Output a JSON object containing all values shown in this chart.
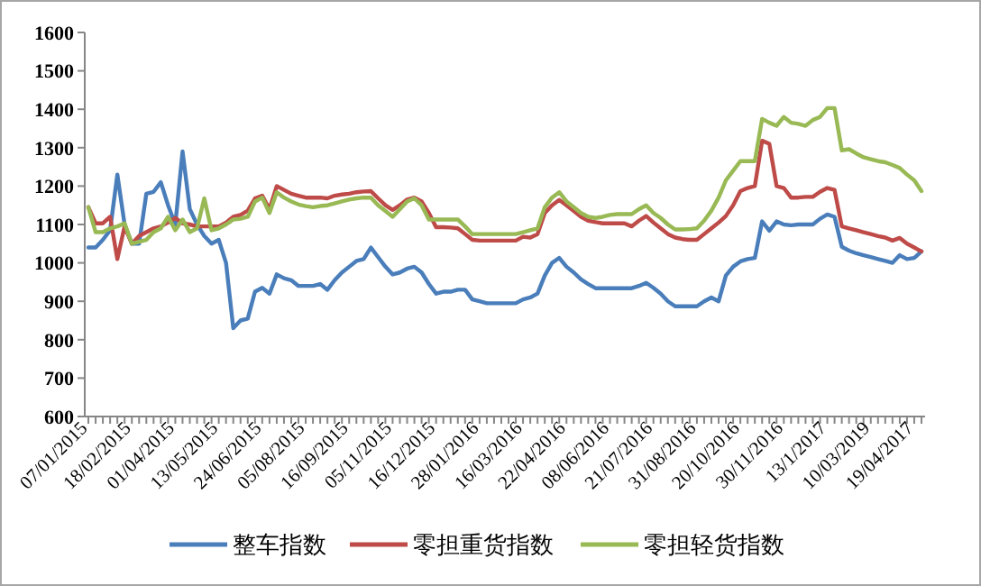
{
  "chart_data": {
    "type": "line",
    "categories": [
      "07/01/2015",
      null,
      null,
      null,
      null,
      null,
      "18/02/2015",
      null,
      null,
      null,
      null,
      null,
      "01/04/2015",
      null,
      null,
      null,
      null,
      null,
      "13/05/2015",
      null,
      null,
      null,
      null,
      null,
      "24/06/2015",
      null,
      null,
      null,
      null,
      null,
      "05/08/2015",
      null,
      null,
      null,
      null,
      null,
      "16/09/2015",
      null,
      null,
      null,
      null,
      null,
      "05/11/2015",
      null,
      null,
      null,
      null,
      null,
      "16/12/2015",
      null,
      null,
      null,
      null,
      null,
      "28/01/2016",
      null,
      null,
      null,
      null,
      null,
      "16/03/2016",
      null,
      null,
      null,
      null,
      null,
      "22/04/2016",
      null,
      null,
      null,
      null,
      null,
      "08/06/2016",
      null,
      null,
      null,
      null,
      null,
      "21/07/2016",
      null,
      null,
      null,
      null,
      null,
      "31/08/2016",
      null,
      null,
      null,
      null,
      null,
      "20/10/2016",
      null,
      null,
      null,
      null,
      null,
      "30/11/2016",
      null,
      null,
      null,
      null,
      null,
      "13/1/2017",
      null,
      null,
      null,
      null,
      null,
      "10/03/2019",
      null,
      null,
      null,
      null,
      null,
      "19/04/2017",
      null
    ],
    "series": [
      {
        "name": "整车指数",
        "color": "#4a7ebb",
        "values": [
          1040,
          1040,
          1060,
          1085,
          1230,
          1100,
          1050,
          1050,
          1180,
          1185,
          1210,
          1150,
          1100,
          1290,
          1140,
          1100,
          1070,
          1050,
          1060,
          1000,
          830,
          850,
          855,
          925,
          935,
          920,
          970,
          960,
          955,
          940,
          940,
          940,
          945,
          930,
          955,
          975,
          990,
          1005,
          1010,
          1040,
          1015,
          990,
          970,
          975,
          985,
          990,
          975,
          945,
          920,
          925,
          925,
          930,
          930,
          905,
          900,
          895,
          895,
          895,
          895,
          895,
          905,
          910,
          920,
          967,
          1000,
          1013,
          990,
          975,
          957,
          945,
          934,
          934,
          934,
          934,
          934,
          934,
          940,
          948,
          935,
          920,
          900,
          887,
          887,
          887,
          887,
          900,
          910,
          900,
          967,
          990,
          1004,
          1010,
          1013,
          1108,
          1084,
          1108,
          1100,
          1098,
          1100,
          1100,
          1100,
          1115,
          1126,
          1120,
          1042,
          1032,
          1025,
          1020,
          1015,
          1010,
          1005,
          1000,
          1020,
          1010,
          1013,
          1030
        ]
      },
      {
        "name": "零担重货指数",
        "color": "#be4b48",
        "values": [
          1145,
          1103,
          1103,
          1120,
          1010,
          1095,
          1050,
          1070,
          1080,
          1090,
          1095,
          1105,
          1117,
          1103,
          1100,
          1095,
          1095,
          1095,
          1095,
          1105,
          1120,
          1125,
          1136,
          1168,
          1175,
          1140,
          1200,
          1190,
          1180,
          1175,
          1170,
          1170,
          1170,
          1168,
          1175,
          1178,
          1180,
          1184,
          1186,
          1187,
          1168,
          1150,
          1138,
          1150,
          1165,
          1170,
          1160,
          1130,
          1093,
          1093,
          1092,
          1090,
          1075,
          1060,
          1058,
          1058,
          1058,
          1058,
          1058,
          1058,
          1068,
          1066,
          1075,
          1130,
          1150,
          1164,
          1150,
          1135,
          1120,
          1110,
          1106,
          1103,
          1103,
          1103,
          1103,
          1095,
          1110,
          1122,
          1105,
          1090,
          1075,
          1066,
          1062,
          1060,
          1060,
          1075,
          1090,
          1105,
          1122,
          1150,
          1187,
          1195,
          1200,
          1318,
          1310,
          1200,
          1195,
          1170,
          1170,
          1172,
          1172,
          1185,
          1195,
          1190,
          1095,
          1090,
          1085,
          1080,
          1075,
          1070,
          1066,
          1058,
          1065,
          1050,
          1040,
          1030
        ]
      },
      {
        "name": "零担轻货指数",
        "color": "#98b954",
        "values": [
          1145,
          1080,
          1080,
          1090,
          1095,
          1103,
          1050,
          1055,
          1060,
          1080,
          1090,
          1120,
          1085,
          1113,
          1080,
          1090,
          1168,
          1085,
          1090,
          1100,
          1113,
          1115,
          1120,
          1160,
          1170,
          1130,
          1184,
          1170,
          1160,
          1152,
          1148,
          1145,
          1148,
          1150,
          1155,
          1160,
          1165,
          1168,
          1170,
          1170,
          1150,
          1135,
          1120,
          1140,
          1160,
          1168,
          1150,
          1113,
          1113,
          1113,
          1113,
          1113,
          1095,
          1075,
          1075,
          1075,
          1075,
          1075,
          1075,
          1075,
          1080,
          1085,
          1090,
          1145,
          1170,
          1184,
          1160,
          1145,
          1130,
          1120,
          1117,
          1120,
          1125,
          1127,
          1127,
          1127,
          1140,
          1150,
          1130,
          1117,
          1100,
          1087,
          1087,
          1088,
          1090,
          1110,
          1136,
          1170,
          1215,
          1240,
          1265,
          1265,
          1265,
          1375,
          1365,
          1357,
          1380,
          1365,
          1362,
          1357,
          1372,
          1380,
          1403,
          1403,
          1293,
          1296,
          1285,
          1275,
          1270,
          1265,
          1262,
          1255,
          1247,
          1230,
          1215,
          1187
        ]
      }
    ],
    "ylim": [
      600,
      1600
    ],
    "yticks": [
      600,
      700,
      800,
      900,
      1000,
      1100,
      1200,
      1300,
      1400,
      1500,
      1600
    ],
    "grid": false,
    "legend": "bottom",
    "marker": "none",
    "line_style": "solid"
  }
}
